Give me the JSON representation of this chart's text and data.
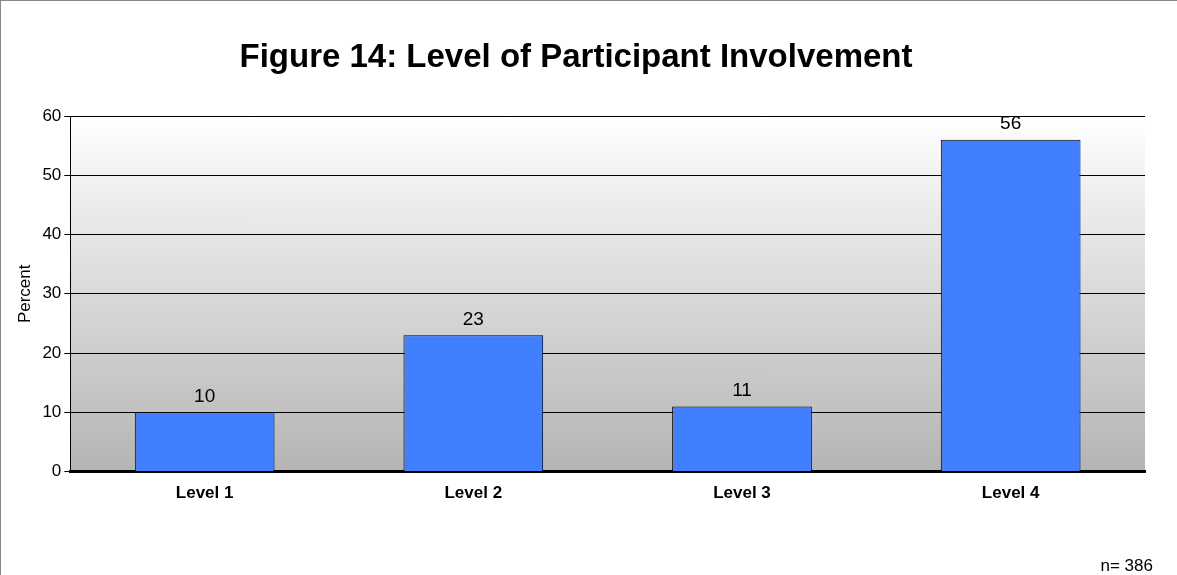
{
  "chart_data": {
    "type": "bar",
    "title": "Figure 14: Level of Participant Involvement",
    "ylabel": "Percent",
    "categories": [
      "Level 1",
      "Level 2",
      "Level 3",
      "Level 4"
    ],
    "values": [
      10,
      23,
      11,
      56
    ],
    "color": "#4080ff",
    "ylim": [
      0,
      60
    ],
    "yticks": [
      0,
      10,
      20,
      30,
      40,
      50,
      60
    ],
    "grid": "y",
    "data_labels": true,
    "legend": false,
    "annotations": [
      "n= 386"
    ]
  }
}
